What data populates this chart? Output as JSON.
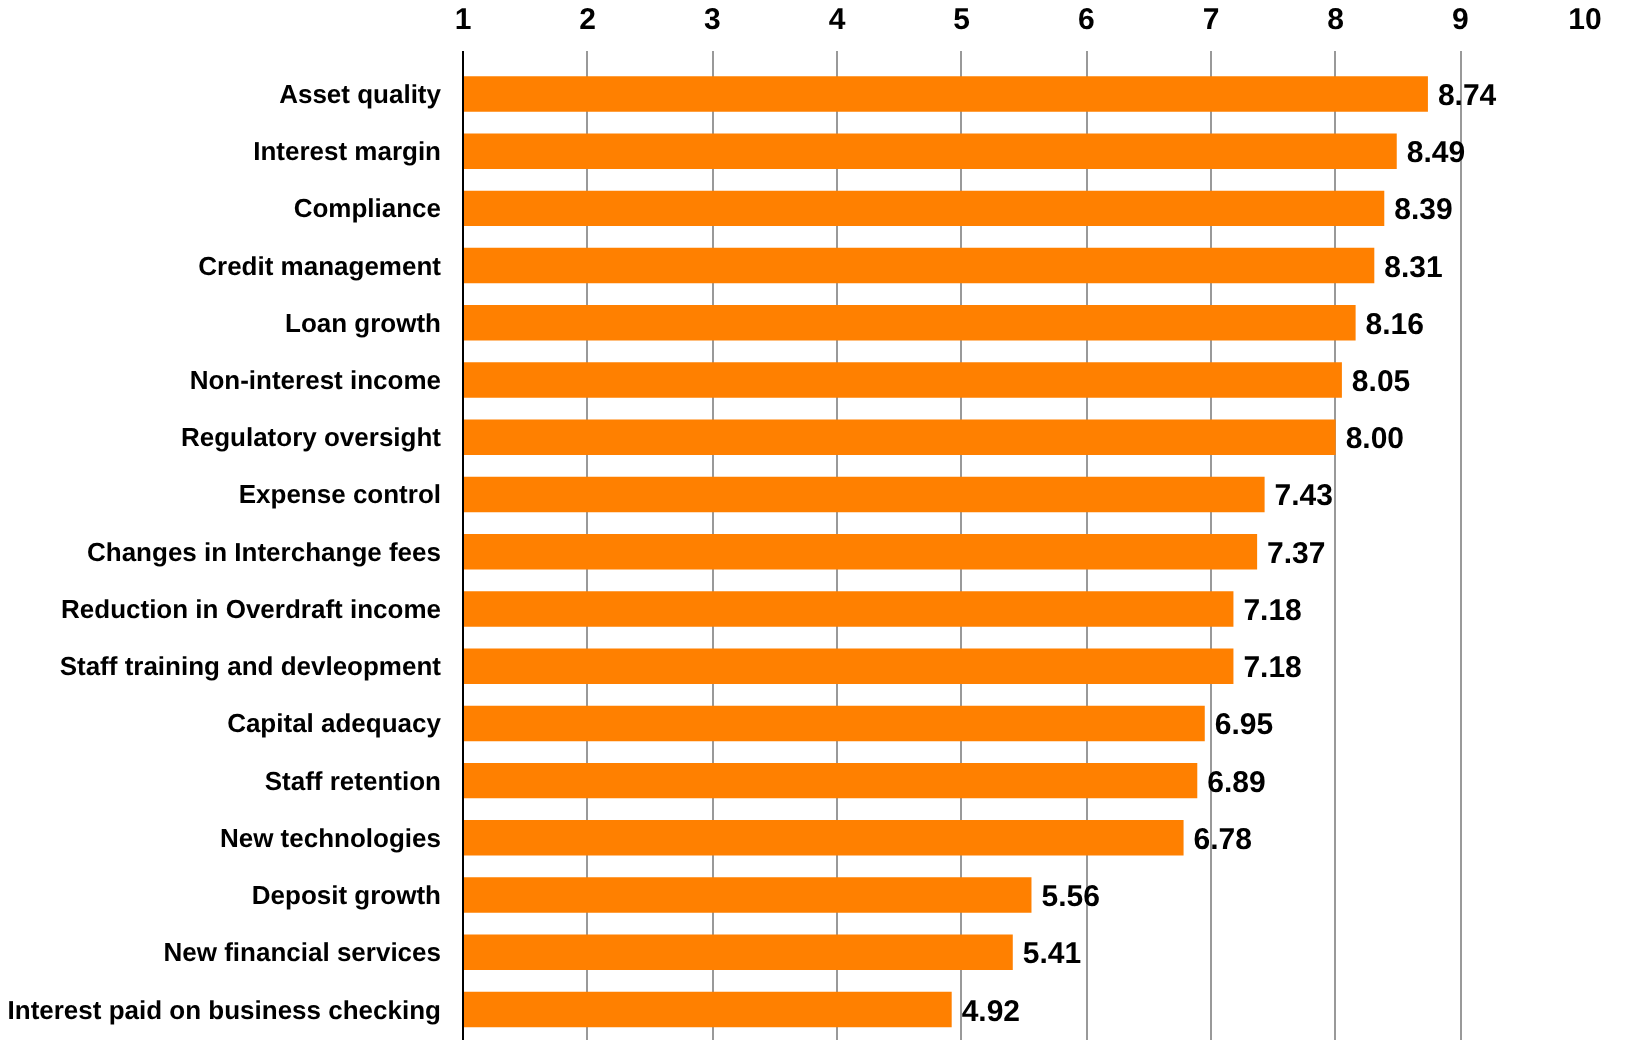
{
  "chart_data": {
    "type": "bar",
    "orientation": "horizontal",
    "categories": [
      "Asset quality",
      "Interest margin",
      "Compliance",
      "Credit management",
      "Loan growth",
      "Non-interest income",
      "Regulatory oversight",
      "Expense control",
      "Changes in Interchange fees",
      "Reduction in Overdraft income",
      "Staff training and devleopment",
      "Capital adequacy",
      "Staff retention",
      "New technologies",
      "Deposit growth",
      "New financial services",
      "Interest paid on business checking"
    ],
    "values": [
      8.74,
      8.49,
      8.39,
      8.31,
      8.16,
      8.05,
      8.0,
      7.43,
      7.37,
      7.18,
      7.18,
      6.95,
      6.89,
      6.78,
      5.56,
      5.41,
      4.92
    ],
    "value_labels": [
      "8.74",
      "8.49",
      "8.39",
      "8.31",
      "8.16",
      "8.05",
      "8.00",
      "7.43",
      "7.37",
      "7.18",
      "7.18",
      "6.95",
      "6.89",
      "6.78",
      "5.56",
      "5.41",
      "4.92"
    ],
    "color": "#ff8000",
    "xlim": [
      1,
      10
    ],
    "xticks": [
      1,
      2,
      3,
      4,
      5,
      6,
      7,
      8,
      9,
      10
    ],
    "grid": "x"
  }
}
